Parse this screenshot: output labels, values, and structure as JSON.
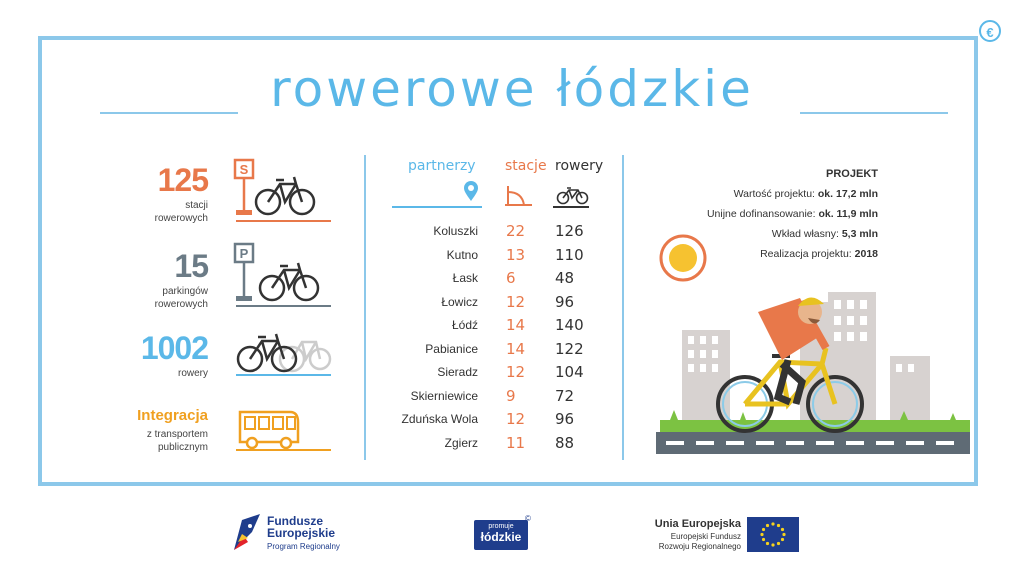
{
  "title": "rowerowe łódzkie",
  "stats": [
    {
      "value": "125",
      "label_line1": "stacji",
      "label_line2": "rowerowych",
      "color": "#e8784a"
    },
    {
      "value": "15",
      "label_line1": "parkingów",
      "label_line2": "rowerowych",
      "color": "#6b7b86"
    },
    {
      "value": "1002",
      "label_line1": "rowery",
      "label_line2": "",
      "color": "#5bb8e8"
    },
    {
      "value": "Integracja",
      "label_line1": "z transportem",
      "label_line2": "publicznym",
      "color": "#f0a020"
    }
  ],
  "sign_s": "S",
  "sign_p": "P",
  "table": {
    "headers": {
      "partners": "partnerzy",
      "stations": "stacje",
      "bikes": "rowery"
    },
    "rows": [
      {
        "city": "Koluszki",
        "stations": "22",
        "bikes": "126"
      },
      {
        "city": "Kutno",
        "stations": "13",
        "bikes": "110"
      },
      {
        "city": "Łask",
        "stations": "6",
        "bikes": "48"
      },
      {
        "city": "Łowicz",
        "stations": "12",
        "bikes": "96"
      },
      {
        "city": "Łódź",
        "stations": "14",
        "bikes": "140"
      },
      {
        "city": "Pabianice",
        "stations": "14",
        "bikes": "122"
      },
      {
        "city": "Sieradz",
        "stations": "12",
        "bikes": "104"
      },
      {
        "city": "Skierniewice",
        "stations": "9",
        "bikes": "72"
      },
      {
        "city": "Zduńska Wola",
        "stations": "12",
        "bikes": "96"
      },
      {
        "city": "Zgierz",
        "stations": "11",
        "bikes": "88"
      }
    ]
  },
  "project": {
    "heading": "PROJEKT",
    "lines": [
      {
        "label": "Wartość projektu: ",
        "value": "ok. 17,2 mln"
      },
      {
        "label": "Unijne dofinansowanie: ",
        "value": "ok. 11,9 mln"
      },
      {
        "label": "Wkład własny: ",
        "value": "5,3 mln"
      },
      {
        "label": "Realizacja projektu: ",
        "value": "2018"
      }
    ]
  },
  "footer": {
    "fe_line1": "Fundusze",
    "fe_line2": "Europejskie",
    "fe_line3": "Program Regionalny",
    "promo_line1": "promuje",
    "promo_line2": "łódzkie",
    "eu_line1": "Unia Europejska",
    "eu_line2": "Europejski Fundusz",
    "eu_line3": "Rozwoju Regionalnego"
  },
  "colors": {
    "accent_blue": "#5bb8e8",
    "accent_orange": "#e8784a",
    "accent_gray": "#6b7b86",
    "accent_yellow": "#f0a020",
    "grass": "#7cc242"
  }
}
